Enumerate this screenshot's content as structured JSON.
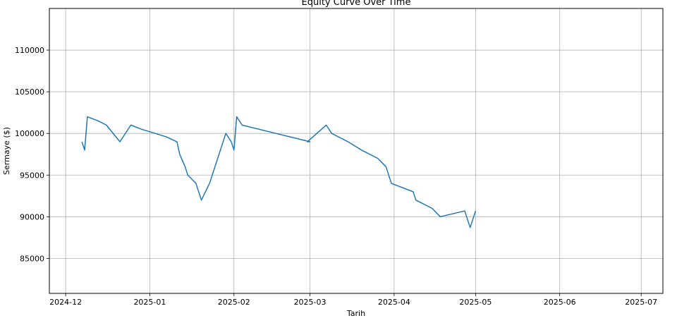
{
  "chart_data": {
    "type": "line",
    "title": "Equity Curve Over Time",
    "xlabel": "Tarih",
    "ylabel": "Sermaye ($)",
    "x_ticks": [
      "2024-12",
      "2025-01",
      "2025-02",
      "2025-03",
      "2025-04",
      "2025-05",
      "2025-06",
      "2025-07"
    ],
    "y_ticks": [
      85000,
      90000,
      95000,
      100000,
      105000,
      110000
    ],
    "xlim": [
      "2024-11-25",
      "2025-07-09"
    ],
    "ylim": [
      80800,
      115000
    ],
    "grid": true,
    "legend": "none",
    "colors": {
      "line": "#1f77b4",
      "grid": "#b0b0b0",
      "axes": "#000000"
    },
    "series": [
      {
        "points": [
          [
            "2024-12-07",
            99000
          ],
          [
            "2024-12-08",
            98000
          ],
          [
            "2024-12-09",
            102000
          ],
          [
            "2024-12-13",
            101500
          ],
          [
            "2024-12-16",
            101000
          ],
          [
            "2024-12-21",
            99000
          ],
          [
            "2024-12-25",
            101000
          ],
          [
            "2024-12-29",
            100500
          ],
          [
            "2025-01-01",
            100200
          ],
          [
            "2025-01-07",
            99600
          ],
          [
            "2025-01-11",
            99000
          ],
          [
            "2025-01-12",
            97500
          ],
          [
            "2025-01-14",
            96000
          ],
          [
            "2025-01-15",
            95000
          ],
          [
            "2025-01-18",
            94000
          ],
          [
            "2025-01-20",
            92000
          ],
          [
            "2025-01-23",
            94000
          ],
          [
            "2025-01-27",
            98000
          ],
          [
            "2025-01-29",
            100000
          ],
          [
            "2025-01-31",
            99000
          ],
          [
            "2025-02-01",
            98000
          ],
          [
            "2025-02-02",
            102000
          ],
          [
            "2025-02-04",
            101000
          ],
          [
            "2025-02-29",
            99000
          ],
          [
            "2025-02-28",
            99000
          ],
          [
            "2025-03-07",
            101000
          ],
          [
            "2025-03-09",
            100000
          ],
          [
            "2025-03-15",
            99000
          ],
          [
            "2025-03-20",
            98000
          ],
          [
            "2025-03-26",
            97000
          ],
          [
            "2025-03-29",
            96000
          ],
          [
            "2025-03-31",
            94000
          ],
          [
            "2025-04-08",
            93000
          ],
          [
            "2025-04-09",
            92000
          ],
          [
            "2025-04-15",
            91000
          ],
          [
            "2025-04-18",
            90000
          ],
          [
            "2025-04-27",
            90700
          ],
          [
            "2025-04-29",
            88700
          ],
          [
            "2025-05-01",
            90700
          ]
        ]
      }
    ]
  }
}
